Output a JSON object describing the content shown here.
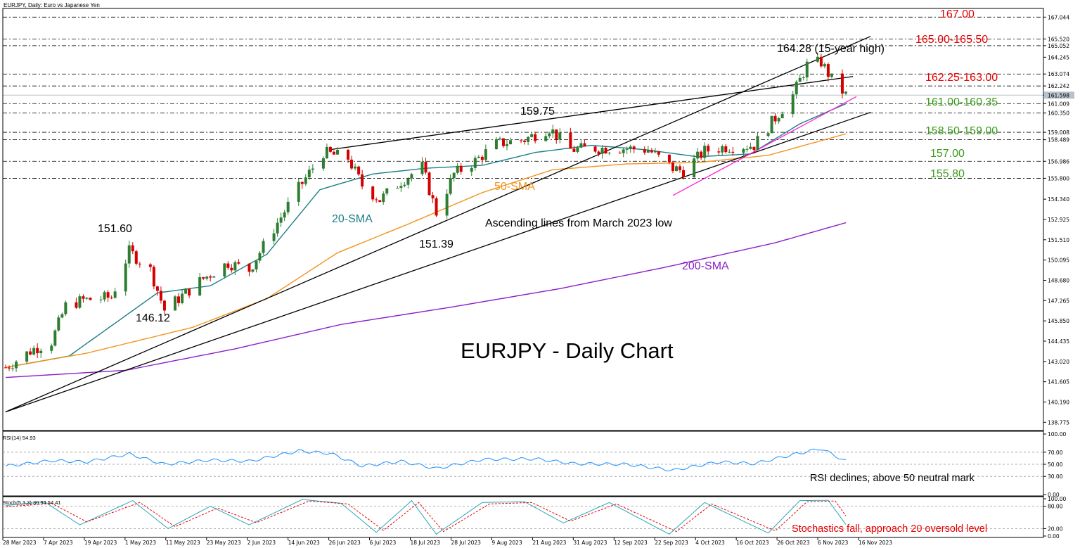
{
  "header": {
    "symbol_title": "EURJPY, Daily:  Euro vs Japanese Yen",
    "watermark": "EURJPY - Daily Chart"
  },
  "colors": {
    "bull": "#2e7d32",
    "bear": "#d50000",
    "sma20": "#1b7f86",
    "sma50": "#f2941d",
    "sma200": "#8a1fc7",
    "trend_black": "#000000",
    "trend_magenta": "#ff1fd8",
    "level_red": "#e60000",
    "level_green": "#3c9c1a",
    "rsi": "#1e90ff",
    "stoch_main": "#2aa7b8",
    "stoch_signal": "#e60000"
  },
  "chart_data": [
    {
      "type": "candlestick",
      "panel": "price",
      "ylim": [
        138.2,
        167.6
      ],
      "y_ticks": [
        "167.044",
        "165.520",
        "165.052",
        "164.245",
        "163.074",
        "162.242",
        "161.598",
        "161.009",
        "160.350",
        "159.008",
        "158.489",
        "156.986",
        "155.800",
        "154.340",
        "152.925",
        "151.510",
        "150.095",
        "148.680",
        "147.265",
        "145.850",
        "144.435",
        "143.020",
        "141.605",
        "140.190",
        "138.775"
      ],
      "highlight_tick": "161.598",
      "x_labels": [
        "28 Mar 2023",
        "7 Apr 2023",
        "19 Apr 2023",
        "1 May 2023",
        "11 May 2023",
        "23 May 2023",
        "2 Jun 2023",
        "14 Jun 2023",
        "26 Jun 2023",
        "6 Jul 2023",
        "18 Jul 2023",
        "28 Jul 2023",
        "9 Aug 2023",
        "21 Aug 2023",
        "31 Aug 2023",
        "12 Sep 2023",
        "22 Sep 2023",
        "4 Oct 2023",
        "16 Oct 2023",
        "26 Oct 2023",
        "6 Nov 2023",
        "16 Nov 2023"
      ],
      "date_range": [
        "2023-03-28",
        "2023-11-21"
      ],
      "close_path": [
        [
          "2023-03-28",
          142.6
        ],
        [
          "2023-04-05",
          143.9
        ],
        [
          "2023-04-10",
          144.4
        ],
        [
          "2023-04-14",
          146.9
        ],
        [
          "2023-04-19",
          147.3
        ],
        [
          "2023-04-27",
          147.5
        ],
        [
          "2023-05-02",
          150.7
        ],
        [
          "2023-05-08",
          149.4
        ],
        [
          "2023-05-12",
          146.6
        ],
        [
          "2023-05-16",
          147.4
        ],
        [
          "2023-05-23",
          148.8
        ],
        [
          "2023-05-30",
          149.9
        ],
        [
          "2023-06-05",
          149.4
        ],
        [
          "2023-06-12",
          152.3
        ],
        [
          "2023-06-19",
          155.1
        ],
        [
          "2023-06-26",
          157.6
        ],
        [
          "2023-07-03",
          157.2
        ],
        [
          "2023-07-07",
          155.3
        ],
        [
          "2023-07-12",
          154.3
        ],
        [
          "2023-07-18",
          155.6
        ],
        [
          "2023-07-24",
          156.6
        ],
        [
          "2023-07-28",
          153.4
        ],
        [
          "2023-08-02",
          156.1
        ],
        [
          "2023-08-08",
          157.0
        ],
        [
          "2023-08-14",
          158.2
        ],
        [
          "2023-08-22",
          158.5
        ],
        [
          "2023-08-29",
          159.3
        ],
        [
          "2023-09-04",
          157.8
        ],
        [
          "2023-09-12",
          157.9
        ],
        [
          "2023-09-18",
          157.9
        ],
        [
          "2023-09-26",
          157.8
        ],
        [
          "2023-10-03",
          156.5
        ],
        [
          "2023-10-06",
          156.3
        ],
        [
          "2023-10-12",
          157.7
        ],
        [
          "2023-10-18",
          158.0
        ],
        [
          "2023-10-26",
          158.1
        ],
        [
          "2023-10-31",
          159.7
        ],
        [
          "2023-11-06",
          161.6
        ],
        [
          "2023-11-10",
          163.7
        ],
        [
          "2023-11-14",
          163.9
        ],
        [
          "2023-11-17",
          162.7
        ],
        [
          "2023-11-21",
          161.6
        ]
      ],
      "sma_series": [
        {
          "name": "20-SMA",
          "points": [
            [
              "2023-03-28",
              142.6
            ],
            [
              "2023-04-15",
              143.4
            ],
            [
              "2023-05-10",
              147.8
            ],
            [
              "2023-05-25",
              148.3
            ],
            [
              "2023-06-10",
              150.5
            ],
            [
              "2023-06-25",
              155.0
            ],
            [
              "2023-07-10",
              156.1
            ],
            [
              "2023-07-25",
              156.5
            ],
            [
              "2023-08-10",
              156.7
            ],
            [
              "2023-08-25",
              157.6
            ],
            [
              "2023-09-10",
              158.1
            ],
            [
              "2023-09-25",
              157.8
            ],
            [
              "2023-10-10",
              157.3
            ],
            [
              "2023-10-25",
              157.5
            ],
            [
              "2023-11-08",
              159.6
            ],
            [
              "2023-11-21",
              161.0
            ]
          ]
        },
        {
          "name": "50-SMA",
          "points": [
            [
              "2023-03-28",
              142.6
            ],
            [
              "2023-04-20",
              143.6
            ],
            [
              "2023-05-20",
              145.4
            ],
            [
              "2023-06-10",
              147.4
            ],
            [
              "2023-06-30",
              150.6
            ],
            [
              "2023-07-20",
              152.6
            ],
            [
              "2023-08-10",
              154.8
            ],
            [
              "2023-08-30",
              156.4
            ],
            [
              "2023-09-20",
              156.8
            ],
            [
              "2023-10-10",
              156.9
            ],
            [
              "2023-10-30",
              157.4
            ],
            [
              "2023-11-21",
              158.9
            ]
          ]
        },
        {
          "name": "200-SMA",
          "points": [
            [
              "2023-03-28",
              141.9
            ],
            [
              "2023-05-01",
              142.4
            ],
            [
              "2023-06-01",
              143.9
            ],
            [
              "2023-07-01",
              145.6
            ],
            [
              "2023-08-01",
              146.8
            ],
            [
              "2023-09-01",
              148.1
            ],
            [
              "2023-10-01",
              149.6
            ],
            [
              "2023-11-01",
              151.3
            ],
            [
              "2023-11-21",
              152.7
            ]
          ]
        }
      ],
      "trendlines": [
        {
          "name": "upper-line",
          "from": [
            "2023-06-28",
            157.8
          ],
          "to": [
            "2023-11-23",
            162.9
          ]
        },
        {
          "name": "steep-line",
          "from": [
            "2023-03-28",
            139.5
          ],
          "to": [
            "2023-11-28",
            165.7
          ]
        },
        {
          "name": "lower-line",
          "from": [
            "2023-03-28",
            139.5
          ],
          "to": [
            "2023-11-28",
            160.4
          ]
        },
        {
          "name": "magenta-line",
          "from": [
            "2023-10-03",
            154.6
          ],
          "to": [
            "2023-11-24",
            161.5
          ]
        }
      ],
      "levels": [
        {
          "price": 167.044,
          "label": "167.00",
          "color": "red"
        },
        {
          "price": 165.52,
          "label": "165.00-165.50",
          "color": "red"
        },
        {
          "price": 165.052
        },
        {
          "price": 163.074,
          "label": "162.25-163.00",
          "color": "red"
        },
        {
          "price": 162.242
        },
        {
          "price": 161.009,
          "label": "161.00-160.35",
          "color": "green"
        },
        {
          "price": 160.35
        },
        {
          "price": 159.008,
          "label": "158.50-159.00",
          "color": "green"
        },
        {
          "price": 158.489
        },
        {
          "price": 156.986,
          "label": "157.00",
          "color": "green"
        },
        {
          "price": 155.8,
          "label": "155.80",
          "color": "green"
        }
      ],
      "annotations": {
        "high_15y": "164.28 (15-year high)",
        "a151_60": "151.60",
        "a146_12": "146.12",
        "a151_39": "151.39",
        "a159_75": "159.75",
        "ascending": "Ascending lines from March 2023 low",
        "sma20": "20-SMA",
        "sma50": "50-SMA",
        "sma200": "200-SMA"
      }
    },
    {
      "type": "line",
      "panel": "rsi",
      "title": "RSI(14) 54.93",
      "ylim": [
        0,
        100
      ],
      "y_ticks": [
        "100.00",
        "70.00",
        "50.00",
        "30.00",
        "0.00"
      ],
      "levels": [
        70,
        50,
        30
      ],
      "values_by_date": [
        [
          "2023-03-28",
          47
        ],
        [
          "2023-04-10",
          56
        ],
        [
          "2023-04-20",
          54
        ],
        [
          "2023-05-02",
          67
        ],
        [
          "2023-05-12",
          50
        ],
        [
          "2023-05-25",
          57
        ],
        [
          "2023-06-05",
          55
        ],
        [
          "2023-06-19",
          72
        ],
        [
          "2023-06-28",
          68
        ],
        [
          "2023-07-07",
          47
        ],
        [
          "2023-07-18",
          55
        ],
        [
          "2023-07-28",
          43
        ],
        [
          "2023-08-10",
          58
        ],
        [
          "2023-08-25",
          59
        ],
        [
          "2023-09-05",
          51
        ],
        [
          "2023-09-20",
          50
        ],
        [
          "2023-10-03",
          40
        ],
        [
          "2023-10-16",
          54
        ],
        [
          "2023-10-26",
          51
        ],
        [
          "2023-11-06",
          66
        ],
        [
          "2023-11-14",
          76
        ],
        [
          "2023-11-21",
          55
        ]
      ],
      "note": "RSI declines, above 50 neutral mark"
    },
    {
      "type": "line",
      "panel": "stochastic",
      "title": "Stoch(5,3,3) 30.94 54.41",
      "ylim": [
        0,
        100
      ],
      "y_ticks": [
        "100.00",
        "80.00",
        "20.00",
        "0.00"
      ],
      "levels": [
        80,
        20
      ],
      "series": [
        {
          "name": "main",
          "values_by_date": [
            [
              "2023-03-28",
              82
            ],
            [
              "2023-04-08",
              92
            ],
            [
              "2023-04-18",
              30
            ],
            [
              "2023-05-03",
              95
            ],
            [
              "2023-05-13",
              20
            ],
            [
              "2023-05-25",
              80
            ],
            [
              "2023-06-05",
              30
            ],
            [
              "2023-06-20",
              98
            ],
            [
              "2023-07-01",
              88
            ],
            [
              "2023-07-11",
              10
            ],
            [
              "2023-07-21",
              95
            ],
            [
              "2023-07-28",
              5
            ],
            [
              "2023-08-10",
              90
            ],
            [
              "2023-08-22",
              92
            ],
            [
              "2023-09-02",
              35
            ],
            [
              "2023-09-15",
              90
            ],
            [
              "2023-10-02",
              5
            ],
            [
              "2023-10-12",
              90
            ],
            [
              "2023-10-30",
              8
            ],
            [
              "2023-11-08",
              95
            ],
            [
              "2023-11-16",
              96
            ],
            [
              "2023-11-21",
              31
            ]
          ]
        },
        {
          "name": "signal",
          "values_by_date": [
            [
              "2023-03-28",
              78
            ],
            [
              "2023-04-10",
              88
            ],
            [
              "2023-04-20",
              38
            ],
            [
              "2023-05-05",
              90
            ],
            [
              "2023-05-15",
              25
            ],
            [
              "2023-05-27",
              75
            ],
            [
              "2023-06-07",
              36
            ],
            [
              "2023-06-22",
              94
            ],
            [
              "2023-07-03",
              86
            ],
            [
              "2023-07-13",
              15
            ],
            [
              "2023-07-23",
              90
            ],
            [
              "2023-07-30",
              12
            ],
            [
              "2023-08-12",
              86
            ],
            [
              "2023-08-24",
              90
            ],
            [
              "2023-09-04",
              40
            ],
            [
              "2023-09-17",
              86
            ],
            [
              "2023-10-04",
              12
            ],
            [
              "2023-10-14",
              86
            ],
            [
              "2023-11-01",
              14
            ],
            [
              "2023-11-10",
              92
            ],
            [
              "2023-11-18",
              94
            ],
            [
              "2023-11-21",
              54
            ]
          ]
        }
      ],
      "note": "Stochastics fall, approach 20 oversold level"
    }
  ]
}
